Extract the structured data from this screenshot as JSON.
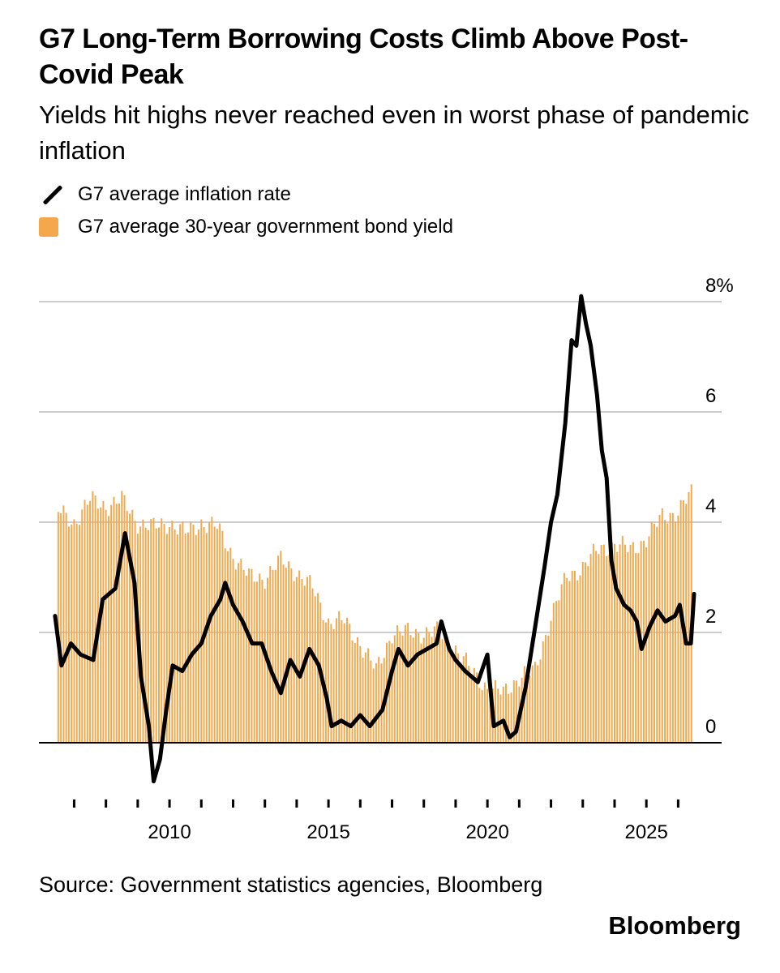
{
  "header": {
    "title": "G7 Long-Term Borrowing Costs Climb Above Post-Covid Peak",
    "subtitle": "Yields hit highs never reached even in worst phase of pandemic inflation"
  },
  "legend": {
    "line_label": "G7 average inflation rate",
    "bar_label": "G7 average 30-year government bond yield"
  },
  "footer": {
    "source": "Source: Government statistics agencies, Bloomberg",
    "brand": "Bloomberg"
  },
  "colors": {
    "bar": "#F5A74C",
    "line": "#000000",
    "grid": "#cccccc"
  },
  "chart_data": {
    "type": "bar",
    "title": "G7 Long-Term Borrowing Costs Climb Above Post-Covid Peak",
    "subtitle": "Yields hit highs never reached even in worst phase of pandemic inflation",
    "y_axis": {
      "min": -1,
      "max": 8,
      "ticks": [
        0,
        2,
        4,
        6,
        8
      ],
      "tick_labels": [
        "0",
        "2",
        "4",
        "6",
        "8%"
      ],
      "position": "right",
      "grid": true
    },
    "x_axis": {
      "min": 2006.3,
      "max": 2026.5,
      "tick_labels": [
        "2010",
        "2015",
        "2020",
        "2025"
      ],
      "tick_values": [
        2010,
        2015,
        2020,
        2025
      ],
      "minor_ticks": "yearly"
    },
    "series": [
      {
        "name": "G7 average 30-year government bond yield",
        "type": "bar",
        "frequency": "monthly",
        "points": [
          [
            2006.5,
            4.2
          ],
          [
            2007.0,
            4.0
          ],
          [
            2007.5,
            4.4
          ],
          [
            2008.0,
            4.3
          ],
          [
            2008.5,
            4.4
          ],
          [
            2009.0,
            4.0
          ],
          [
            2009.5,
            3.9
          ],
          [
            2010.0,
            4.0
          ],
          [
            2010.5,
            3.8
          ],
          [
            2011.0,
            4.0
          ],
          [
            2011.5,
            3.9
          ],
          [
            2012.0,
            3.4
          ],
          [
            2012.5,
            3.0
          ],
          [
            2013.0,
            3.0
          ],
          [
            2013.5,
            3.3
          ],
          [
            2014.0,
            3.1
          ],
          [
            2014.5,
            2.8
          ],
          [
            2015.0,
            2.2
          ],
          [
            2015.5,
            2.2
          ],
          [
            2016.0,
            1.8
          ],
          [
            2016.5,
            1.3
          ],
          [
            2017.0,
            2.0
          ],
          [
            2017.5,
            2.0
          ],
          [
            2018.0,
            2.0
          ],
          [
            2018.5,
            2.0
          ],
          [
            2019.0,
            1.7
          ],
          [
            2019.5,
            1.3
          ],
          [
            2020.0,
            1.0
          ],
          [
            2020.5,
            0.9
          ],
          [
            2021.0,
            1.2
          ],
          [
            2021.5,
            1.3
          ],
          [
            2022.0,
            2.3
          ],
          [
            2022.5,
            3.0
          ],
          [
            2023.0,
            3.2
          ],
          [
            2023.5,
            3.5
          ],
          [
            2024.0,
            3.6
          ],
          [
            2024.5,
            3.5
          ],
          [
            2025.0,
            3.7
          ],
          [
            2025.5,
            4.1
          ],
          [
            2026.0,
            4.2
          ],
          [
            2026.4,
            4.5
          ]
        ]
      },
      {
        "name": "G7 average inflation rate",
        "type": "line",
        "points": [
          [
            2006.4,
            2.3
          ],
          [
            2006.6,
            1.4
          ],
          [
            2006.9,
            1.8
          ],
          [
            2007.2,
            1.6
          ],
          [
            2007.6,
            1.5
          ],
          [
            2007.9,
            2.6
          ],
          [
            2008.3,
            2.8
          ],
          [
            2008.6,
            3.8
          ],
          [
            2008.9,
            2.9
          ],
          [
            2009.1,
            1.2
          ],
          [
            2009.35,
            0.3
          ],
          [
            2009.5,
            -0.7
          ],
          [
            2009.7,
            -0.3
          ],
          [
            2009.9,
            0.6
          ],
          [
            2010.1,
            1.4
          ],
          [
            2010.4,
            1.3
          ],
          [
            2010.7,
            1.6
          ],
          [
            2011.0,
            1.8
          ],
          [
            2011.3,
            2.3
          ],
          [
            2011.6,
            2.6
          ],
          [
            2011.75,
            2.9
          ],
          [
            2012.0,
            2.5
          ],
          [
            2012.3,
            2.2
          ],
          [
            2012.6,
            1.8
          ],
          [
            2012.9,
            1.8
          ],
          [
            2013.2,
            1.3
          ],
          [
            2013.5,
            0.9
          ],
          [
            2013.8,
            1.5
          ],
          [
            2014.1,
            1.2
          ],
          [
            2014.4,
            1.7
          ],
          [
            2014.7,
            1.4
          ],
          [
            2014.95,
            0.8
          ],
          [
            2015.1,
            0.3
          ],
          [
            2015.4,
            0.4
          ],
          [
            2015.7,
            0.3
          ],
          [
            2016.0,
            0.5
          ],
          [
            2016.3,
            0.3
          ],
          [
            2016.7,
            0.6
          ],
          [
            2017.0,
            1.3
          ],
          [
            2017.2,
            1.7
          ],
          [
            2017.5,
            1.4
          ],
          [
            2017.8,
            1.6
          ],
          [
            2018.1,
            1.7
          ],
          [
            2018.4,
            1.8
          ],
          [
            2018.55,
            2.2
          ],
          [
            2018.8,
            1.7
          ],
          [
            2019.0,
            1.5
          ],
          [
            2019.3,
            1.3
          ],
          [
            2019.7,
            1.1
          ],
          [
            2020.0,
            1.6
          ],
          [
            2020.2,
            0.3
          ],
          [
            2020.5,
            0.4
          ],
          [
            2020.7,
            0.1
          ],
          [
            2020.9,
            0.2
          ],
          [
            2021.2,
            1.0
          ],
          [
            2021.5,
            2.1
          ],
          [
            2021.8,
            3.2
          ],
          [
            2022.0,
            4.0
          ],
          [
            2022.2,
            4.5
          ],
          [
            2022.45,
            5.8
          ],
          [
            2022.65,
            7.3
          ],
          [
            2022.8,
            7.2
          ],
          [
            2022.95,
            8.1
          ],
          [
            2023.1,
            7.6
          ],
          [
            2023.25,
            7.2
          ],
          [
            2023.45,
            6.3
          ],
          [
            2023.6,
            5.3
          ],
          [
            2023.75,
            4.8
          ],
          [
            2023.9,
            3.3
          ],
          [
            2024.05,
            2.8
          ],
          [
            2024.3,
            2.5
          ],
          [
            2024.5,
            2.4
          ],
          [
            2024.7,
            2.2
          ],
          [
            2024.85,
            1.7
          ],
          [
            2025.1,
            2.1
          ],
          [
            2025.35,
            2.4
          ],
          [
            2025.6,
            2.2
          ],
          [
            2025.9,
            2.3
          ],
          [
            2026.05,
            2.5
          ],
          [
            2026.25,
            1.8
          ],
          [
            2026.4,
            1.8
          ],
          [
            2026.5,
            2.7
          ]
        ]
      }
    ]
  }
}
